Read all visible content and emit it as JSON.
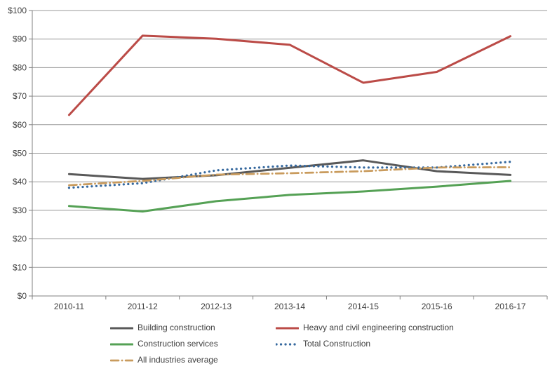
{
  "chart_data": {
    "type": "line",
    "title": "",
    "xlabel": "",
    "ylabel": "",
    "categories": [
      "2010-11",
      "2011-12",
      "2012-13",
      "2013-14",
      "2014-15",
      "2015-16",
      "2016-17"
    ],
    "series": [
      {
        "name": "Building construction",
        "color": "#595959",
        "style": "solid",
        "values": [
          42.7,
          41.0,
          42.3,
          44.9,
          47.5,
          43.7,
          42.4
        ]
      },
      {
        "name": "Heavy and civil engineering construction",
        "color": "#bb4b47",
        "style": "solid",
        "values": [
          63.4,
          91.2,
          90.1,
          88.0,
          74.7,
          78.5,
          91.0
        ]
      },
      {
        "name": "Construction services",
        "color": "#55a155",
        "style": "solid",
        "values": [
          31.5,
          29.6,
          33.2,
          35.4,
          36.6,
          38.3,
          40.3
        ]
      },
      {
        "name": "Total Construction",
        "color": "#35689e",
        "style": "dotted",
        "values": [
          37.9,
          39.5,
          44.0,
          45.7,
          45.0,
          45.0,
          47.0
        ]
      },
      {
        "name": "All industries average",
        "color": "#c99b5d",
        "style": "dashdot",
        "values": [
          38.8,
          40.3,
          42.5,
          43.0,
          43.7,
          45.0,
          45.1
        ]
      }
    ],
    "ylim": [
      0,
      100
    ],
    "y_step": 10,
    "y_tick_labels": [
      "$0",
      "$10",
      "$20",
      "$30",
      "$40",
      "$50",
      "$60",
      "$70",
      "$80",
      "$90",
      "$100"
    ],
    "grid": "horizontal",
    "legend_position": "bottom"
  },
  "colors": {
    "background": "#ffffff",
    "gridline": "#9a9a9a",
    "axis": "#808080",
    "tick_text": "#404040"
  }
}
